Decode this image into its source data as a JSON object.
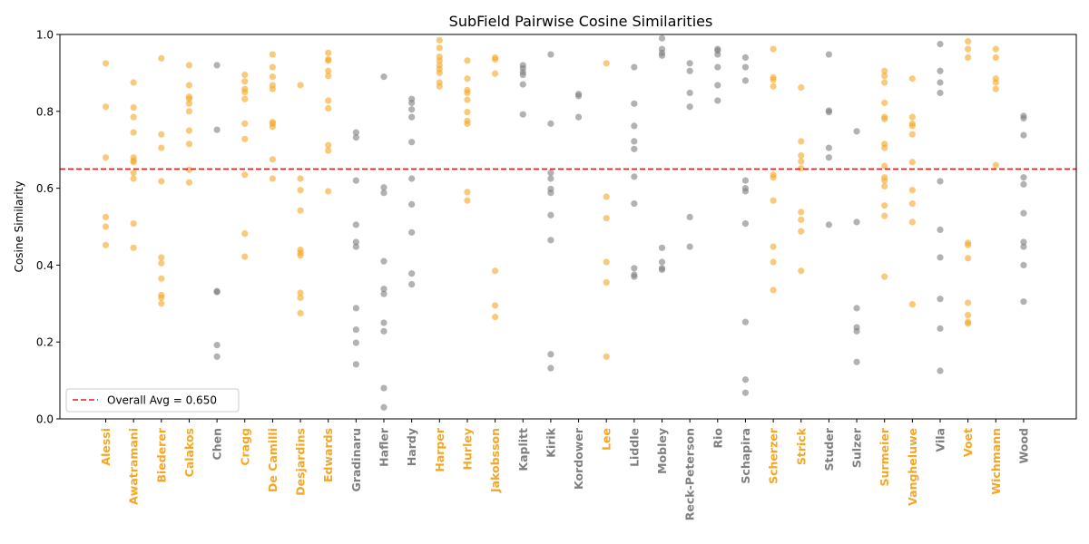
{
  "chart_data": {
    "type": "scatter",
    "title": "SubField Pairwise Cosine Similarities",
    "xlabel": "",
    "ylabel": "Cosine Similarity",
    "ylim": [
      0,
      1.0
    ],
    "yticks": [
      "0.0",
      "0.2",
      "0.4",
      "0.6",
      "0.8",
      "1.0"
    ],
    "grid": false,
    "legend_position": "lower-left",
    "reference_line": {
      "label": "Overall Avg = 0.650",
      "value": 0.65,
      "color": "#e31a1c",
      "style": "dashed"
    },
    "colors": {
      "highlight": "#f5a623",
      "default": "#7f7f7f"
    },
    "categories": [
      "Alessi",
      "Awatramani",
      "Biederer",
      "Calakos",
      "Chen",
      "Cragg",
      "De Camilli",
      "Desjardins",
      "Edwards",
      "Gradinaru",
      "Hafler",
      "Hardy",
      "Harper",
      "Hurley",
      "Jakobsson",
      "Kaplitt",
      "Kirik",
      "Kordower",
      "Lee",
      "Liddle",
      "Mobley",
      "Reck-Peterson",
      "Rio",
      "Schapira",
      "Scherzer",
      "Strick",
      "Studer",
      "Sulzer",
      "Surmeier",
      "Vangheluwe",
      "Vila",
      "Voet",
      "Wichmann",
      "Wood"
    ],
    "highlighted": [
      true,
      true,
      true,
      true,
      false,
      true,
      true,
      true,
      true,
      false,
      false,
      false,
      true,
      true,
      true,
      false,
      false,
      false,
      true,
      false,
      false,
      false,
      false,
      false,
      true,
      true,
      false,
      false,
      true,
      true,
      false,
      true,
      true,
      false
    ],
    "values": [
      [
        0.925,
        0.812,
        0.68,
        0.525,
        0.5,
        0.452
      ],
      [
        0.875,
        0.81,
        0.785,
        0.745,
        0.68,
        0.672,
        0.668,
        0.64,
        0.625,
        0.508,
        0.445
      ],
      [
        0.938,
        0.74,
        0.705,
        0.618,
        0.42,
        0.405,
        0.365,
        0.322,
        0.315,
        0.3
      ],
      [
        0.92,
        0.868,
        0.838,
        0.832,
        0.82,
        0.8,
        0.75,
        0.715,
        0.648,
        0.615
      ],
      [
        0.92,
        0.752,
        0.332,
        0.33,
        0.192,
        0.162
      ],
      [
        0.895,
        0.878,
        0.858,
        0.85,
        0.832,
        0.768,
        0.728,
        0.635,
        0.482,
        0.422
      ],
      [
        0.948,
        0.915,
        0.89,
        0.868,
        0.858,
        0.772,
        0.768,
        0.76,
        0.675,
        0.625
      ],
      [
        0.868,
        0.625,
        0.595,
        0.542,
        0.44,
        0.432,
        0.425,
        0.328,
        0.315,
        0.275
      ],
      [
        0.952,
        0.935,
        0.932,
        0.905,
        0.892,
        0.828,
        0.808,
        0.712,
        0.698,
        0.592
      ],
      [
        0.745,
        0.732,
        0.62,
        0.505,
        0.46,
        0.448,
        0.288,
        0.232,
        0.198,
        0.142
      ],
      [
        0.89,
        0.602,
        0.588,
        0.41,
        0.338,
        0.325,
        0.25,
        0.228,
        0.08,
        0.03
      ],
      [
        0.832,
        0.822,
        0.805,
        0.785,
        0.72,
        0.625,
        0.558,
        0.485,
        0.378,
        0.35
      ],
      [
        0.985,
        0.965,
        0.942,
        0.932,
        0.92,
        0.91,
        0.9,
        0.875,
        0.865
      ],
      [
        0.932,
        0.885,
        0.855,
        0.848,
        0.83,
        0.798,
        0.775,
        0.768,
        0.59,
        0.568
      ],
      [
        0.94,
        0.935,
        0.898,
        0.385,
        0.295,
        0.265
      ],
      [
        0.92,
        0.912,
        0.902,
        0.895,
        0.87,
        0.792
      ],
      [
        0.948,
        0.768,
        0.64,
        0.625,
        0.598,
        0.588,
        0.53,
        0.465,
        0.168,
        0.132
      ],
      [
        0.845,
        0.84,
        0.785
      ],
      [
        0.925,
        0.578,
        0.522,
        0.408,
        0.355,
        0.162
      ],
      [
        0.915,
        0.82,
        0.762,
        0.722,
        0.702,
        0.63,
        0.56,
        0.392,
        0.375,
        0.37
      ],
      [
        0.99,
        0.962,
        0.952,
        0.945,
        0.445,
        0.408,
        0.392,
        0.388
      ],
      [
        0.925,
        0.905,
        0.848,
        0.812,
        0.525,
        0.448
      ],
      [
        0.962,
        0.958,
        0.948,
        0.915,
        0.868,
        0.828
      ],
      [
        0.94,
        0.915,
        0.88,
        0.62,
        0.6,
        0.592,
        0.508,
        0.252,
        0.102,
        0.068
      ],
      [
        0.962,
        0.888,
        0.882,
        0.865,
        0.635,
        0.628,
        0.568,
        0.448,
        0.408,
        0.335
      ],
      [
        0.862,
        0.722,
        0.685,
        0.67,
        0.652,
        0.538,
        0.518,
        0.488,
        0.385
      ],
      [
        0.948,
        0.802,
        0.798,
        0.705,
        0.68,
        0.505
      ],
      [
        0.748,
        0.512,
        0.288,
        0.238,
        0.228,
        0.148
      ],
      [
        0.905,
        0.892,
        0.875,
        0.822,
        0.785,
        0.78,
        0.715,
        0.705,
        0.658,
        0.628,
        0.62,
        0.605,
        0.555,
        0.528,
        0.37
      ],
      [
        0.885,
        0.785,
        0.768,
        0.762,
        0.74,
        0.668,
        0.595,
        0.56,
        0.512,
        0.298
      ],
      [
        0.975,
        0.905,
        0.875,
        0.848,
        0.618,
        0.492,
        0.42,
        0.312,
        0.235,
        0.125
      ],
      [
        0.982,
        0.962,
        0.94,
        0.458,
        0.452,
        0.418,
        0.302,
        0.27,
        0.252,
        0.248
      ],
      [
        0.962,
        0.94,
        0.885,
        0.875,
        0.858,
        0.66
      ],
      [
        0.788,
        0.782,
        0.738,
        0.628,
        0.61,
        0.535,
        0.46,
        0.448,
        0.4,
        0.305
      ]
    ]
  }
}
